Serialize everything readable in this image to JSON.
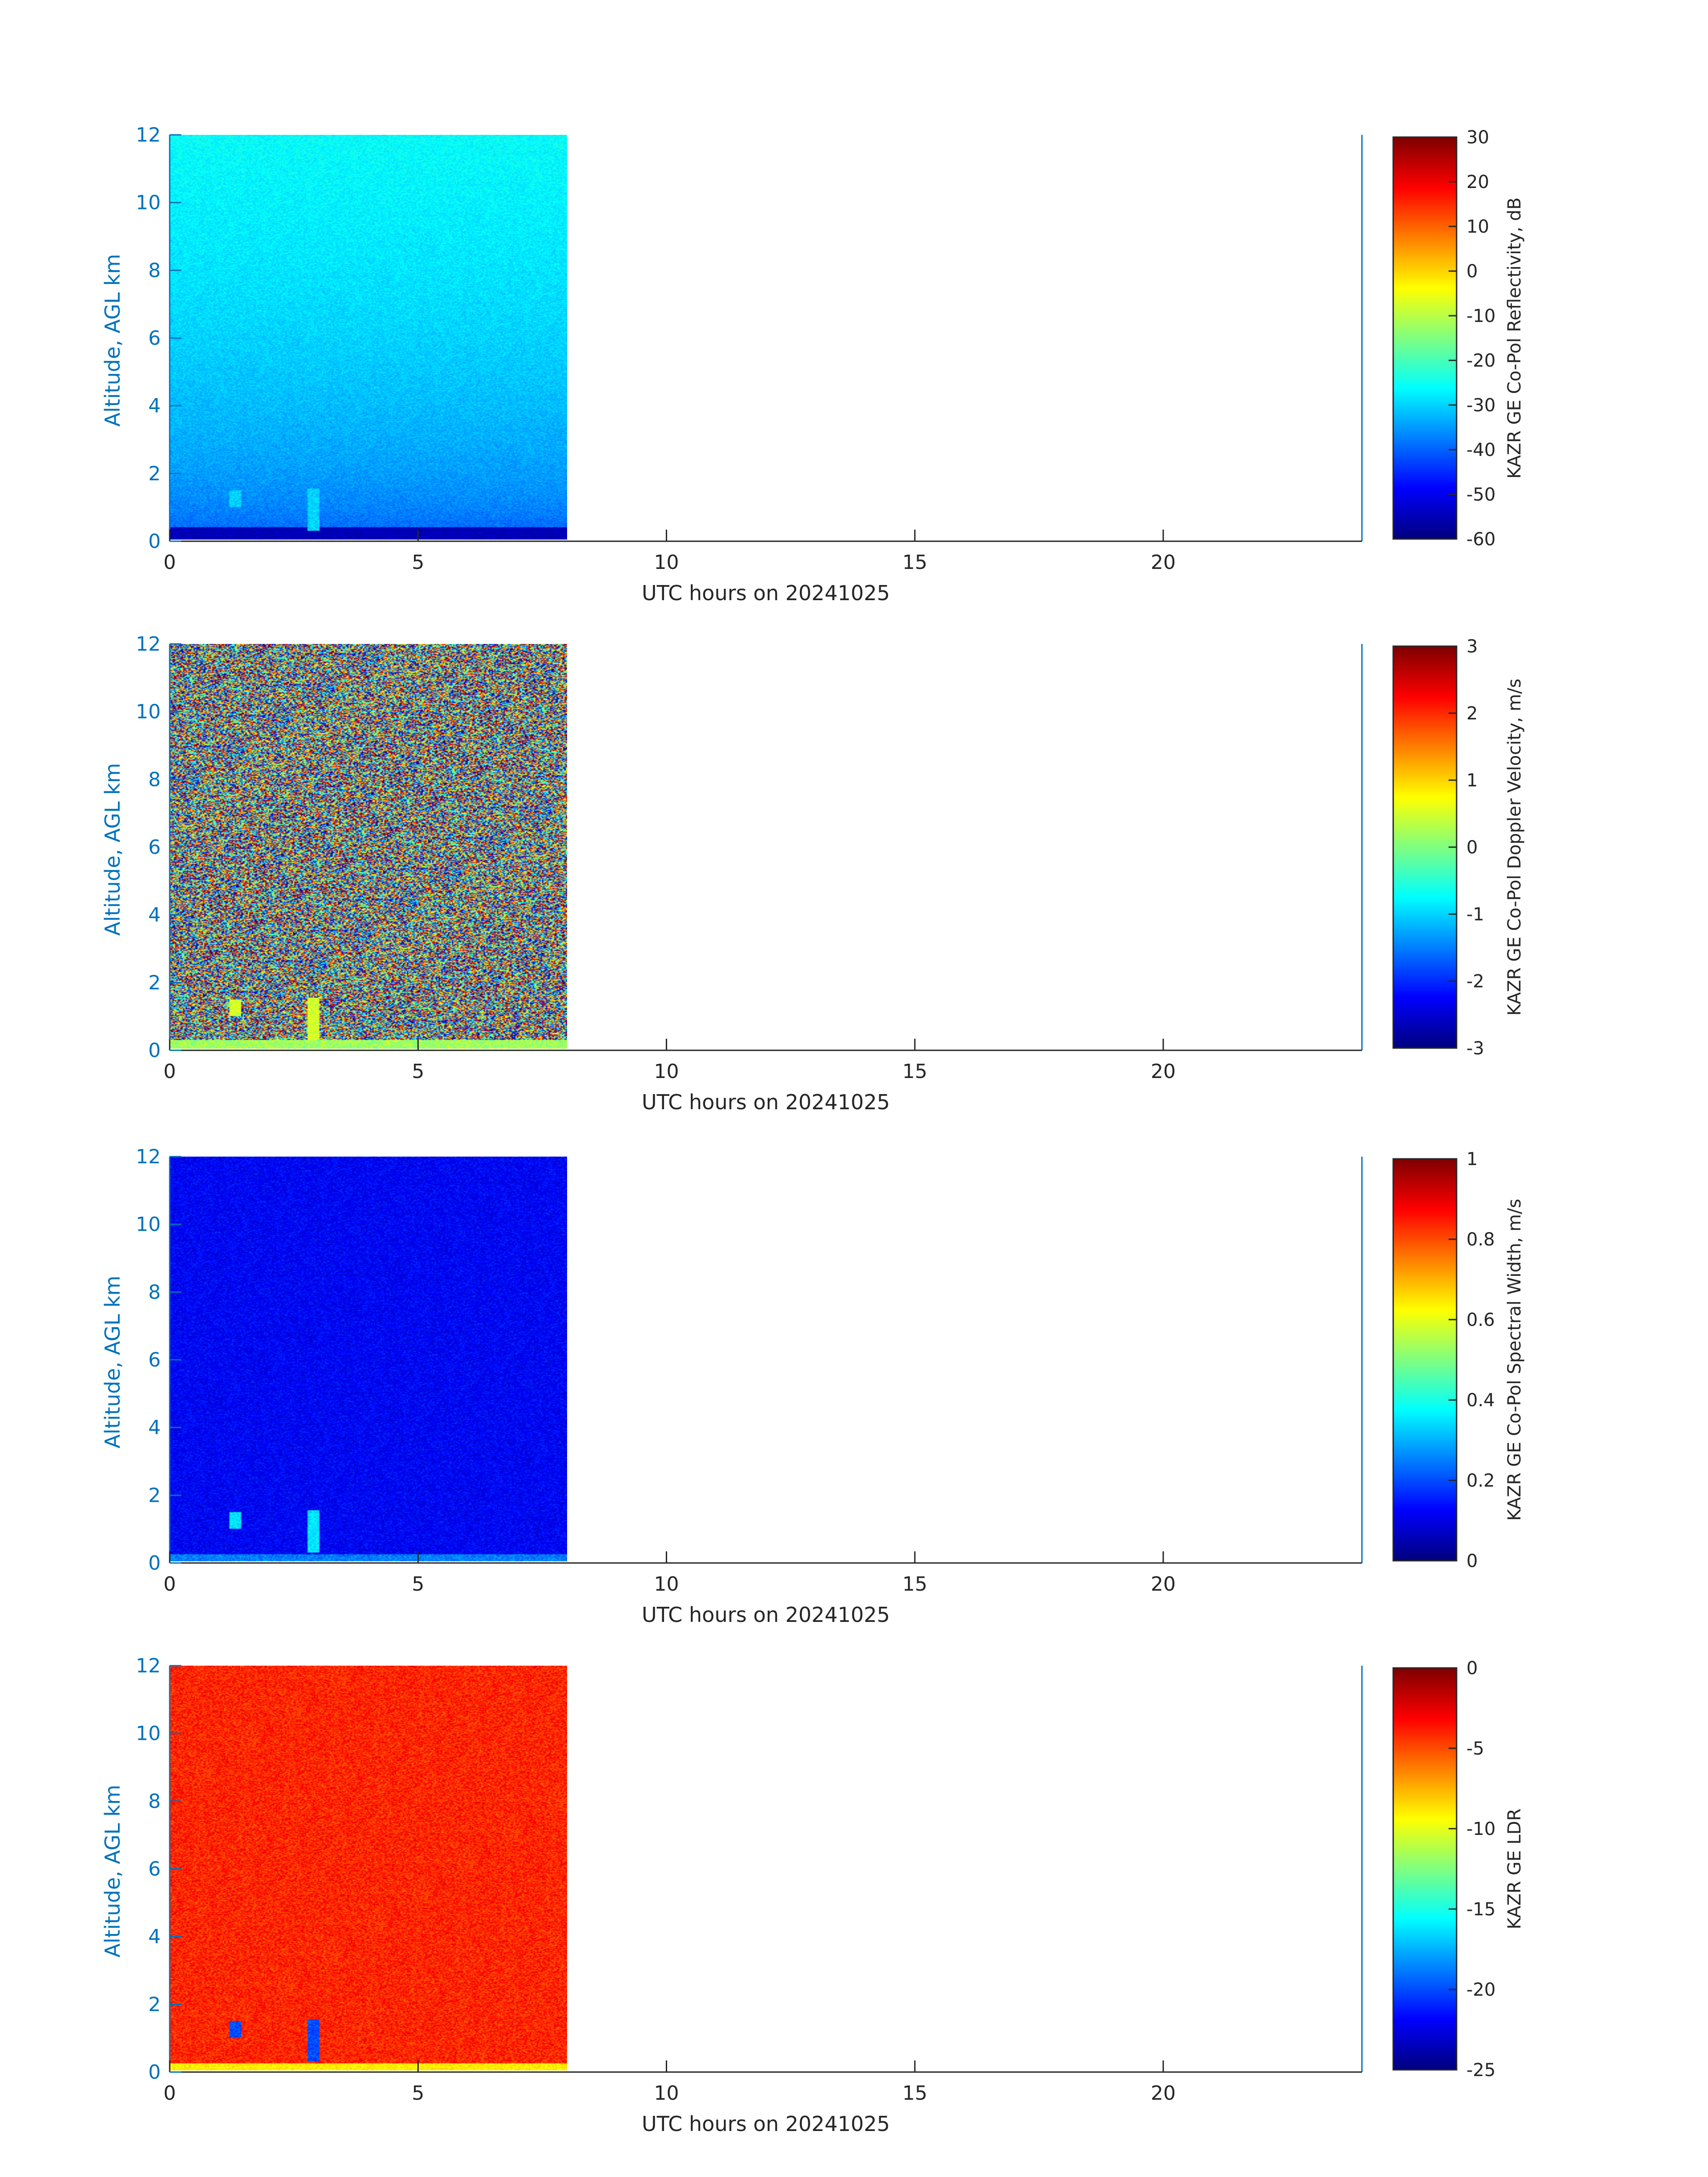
{
  "figure": {
    "panel_count": 4
  },
  "chart_data": [
    {
      "type": "heatmap",
      "title": "",
      "xlabel": "UTC hours on 20241025",
      "ylabel": "Altitude, AGL km",
      "xlim": [
        0,
        24
      ],
      "ylim": [
        0,
        12
      ],
      "x_ticks": [
        0,
        5,
        10,
        15,
        20
      ],
      "y_ticks": [
        0,
        2,
        4,
        6,
        8,
        10,
        12
      ],
      "data_extent": {
        "x_start": 0,
        "x_end": 8.0,
        "y_start": 0.05,
        "y_end": 12
      },
      "colorbar": {
        "label": "KAZR GE Co-Pol Reflectivity, dB",
        "colormap": "jet",
        "range": [
          -60,
          30
        ],
        "ticks": [
          -60,
          -50,
          -40,
          -30,
          -20,
          -10,
          0,
          10,
          20,
          30
        ]
      },
      "description_values": {
        "background_top": -26,
        "background_bottom": -45,
        "near_surface": -55,
        "feature_value": -30
      },
      "features": [
        {
          "x_hours": 1.3,
          "alt_km_top": 1.5,
          "alt_km_bottom": 1.0
        },
        {
          "x_hours": 2.9,
          "alt_km_top": 1.55,
          "alt_km_bottom": 0.3
        }
      ]
    },
    {
      "type": "heatmap",
      "title": "",
      "xlabel": "UTC hours on 20241025",
      "ylabel": "Altitude, AGL km",
      "xlim": [
        0,
        24
      ],
      "ylim": [
        0,
        12
      ],
      "x_ticks": [
        0,
        5,
        10,
        15,
        20
      ],
      "y_ticks": [
        0,
        2,
        4,
        6,
        8,
        10,
        12
      ],
      "data_extent": {
        "x_start": 0,
        "x_end": 8.0,
        "y_start": 0.05,
        "y_end": 12
      },
      "colorbar": {
        "label": "KAZR GE Co-Pol Doppler Velocity, m/s",
        "colormap": "jet",
        "range": [
          -3,
          3
        ],
        "ticks": [
          -3,
          -2,
          -1,
          0,
          1,
          2,
          3
        ]
      },
      "description_values": {
        "noise_range": [
          -3,
          3
        ],
        "near_surface": 0.2,
        "feature_value": 0.5
      },
      "features": [
        {
          "x_hours": 1.3,
          "alt_km_top": 1.5,
          "alt_km_bottom": 1.0
        },
        {
          "x_hours": 2.9,
          "alt_km_top": 1.55,
          "alt_km_bottom": 0.3
        }
      ]
    },
    {
      "type": "heatmap",
      "title": "",
      "xlabel": "UTC hours on 20241025",
      "ylabel": "Altitude, AGL km",
      "xlim": [
        0,
        24
      ],
      "ylim": [
        0,
        12
      ],
      "x_ticks": [
        0,
        5,
        10,
        15,
        20
      ],
      "y_ticks": [
        0,
        2,
        4,
        6,
        8,
        10,
        12
      ],
      "data_extent": {
        "x_start": 0,
        "x_end": 8.0,
        "y_start": 0.05,
        "y_end": 12
      },
      "colorbar": {
        "label": "KAZR GE Co-Pol Spectral Width, m/s",
        "colormap": "jet",
        "range": [
          0,
          1
        ],
        "ticks": [
          0,
          0.2,
          0.4,
          0.6,
          0.8,
          1
        ]
      },
      "description_values": {
        "background": 0.12,
        "near_surface": 0.2,
        "feature_value": 0.35
      },
      "features": [
        {
          "x_hours": 1.3,
          "alt_km_top": 1.5,
          "alt_km_bottom": 1.0
        },
        {
          "x_hours": 2.9,
          "alt_km_top": 1.55,
          "alt_km_bottom": 0.3
        }
      ]
    },
    {
      "type": "heatmap",
      "title": "",
      "xlabel": "UTC hours on 20241025",
      "ylabel": "Altitude, AGL km",
      "xlim": [
        0,
        24
      ],
      "ylim": [
        0,
        12
      ],
      "x_ticks": [
        0,
        5,
        10,
        15,
        20
      ],
      "y_ticks": [
        0,
        2,
        4,
        6,
        8,
        10,
        12
      ],
      "data_extent": {
        "x_start": 0,
        "x_end": 8.0,
        "y_start": 0.05,
        "y_end": 12
      },
      "colorbar": {
        "label": "KAZR GE LDR",
        "colormap": "jet",
        "range": [
          -25,
          0
        ],
        "ticks": [
          -25,
          -20,
          -15,
          -10,
          -5,
          0
        ]
      },
      "description_values": {
        "background": -4,
        "near_surface": -9,
        "feature_value": -20
      },
      "features": [
        {
          "x_hours": 1.3,
          "alt_km_top": 1.5,
          "alt_km_bottom": 1.0
        },
        {
          "x_hours": 2.9,
          "alt_km_top": 1.55,
          "alt_km_bottom": 0.3
        }
      ]
    }
  ],
  "colors": {
    "y_axis": "#0072BD",
    "x_axis": "#262626",
    "background": "#ffffff"
  }
}
